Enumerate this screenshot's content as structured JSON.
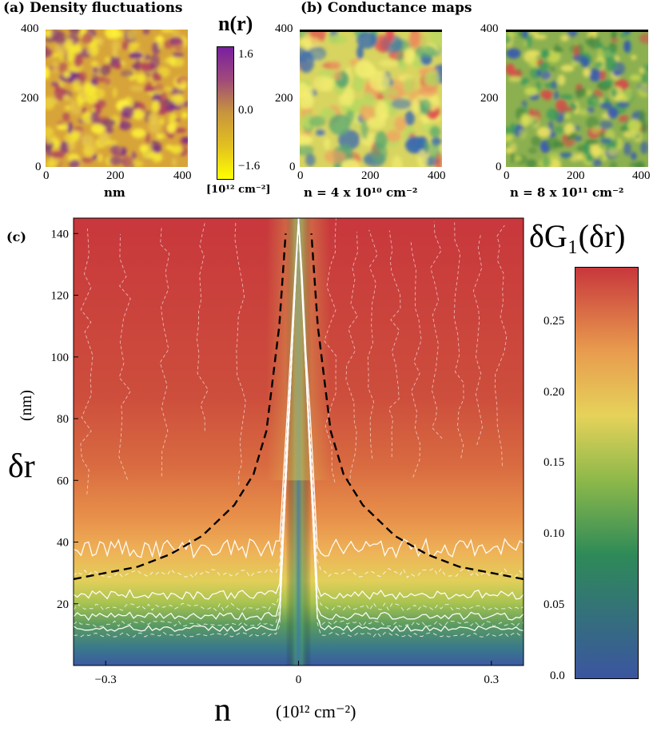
{
  "panel_a": {
    "title": "(a) Density fluctuations",
    "x_ticks": [
      "0",
      "200",
      "400"
    ],
    "y_ticks": [
      "400",
      "200",
      "0"
    ],
    "xlabel": "nm",
    "colorbar_title": "n(r)",
    "colorbar_ticks": [
      "1.6",
      "0.0",
      "−1.6"
    ],
    "colorbar_unit": "[10¹² cm⁻²]",
    "colors": [
      "#ffff00",
      "#c8963c",
      "#7a1fa0"
    ]
  },
  "panel_b": {
    "title": "(b) Conductance maps",
    "maps": [
      {
        "x_ticks": [
          "0",
          "200",
          "400"
        ],
        "y_ticks": [
          "400",
          "200",
          "0"
        ],
        "caption": "n = 4 x 10¹⁰ cm⁻²"
      },
      {
        "x_ticks": [
          "0",
          "200",
          "400"
        ],
        "y_ticks": [
          "400",
          "200",
          "0"
        ],
        "caption": "n = 8 x 10¹¹ cm⁻²"
      }
    ]
  },
  "panel_c": {
    "label": "(c)",
    "ylabel_symbol": "δr",
    "ylabel_unit": "(nm)",
    "xlabel_symbol": "n",
    "xlabel_unit": "(10¹² cm⁻²)",
    "colorbar_title": "δG₁(δr)",
    "colorbar_ticks": [
      "0.25",
      "0.20",
      "0.15",
      "0.10",
      "0.05",
      "0.0"
    ],
    "colorscale": [
      "#3b55a0",
      "#2e8a58",
      "#8cb84a",
      "#e6d25a",
      "#e89a4e",
      "#c8373c"
    ]
  },
  "chart_data": {
    "type": "heatmap",
    "x": [
      -0.35,
      0.35
    ],
    "y": [
      0,
      145
    ],
    "xlim": [
      -0.35,
      0.35
    ],
    "ylim": [
      0,
      145
    ],
    "x_ticks": [
      -0.3,
      0,
      0.3
    ],
    "x_tick_labels": [
      "−0.3",
      "0",
      "0.3"
    ],
    "y_ticks": [
      20,
      40,
      60,
      80,
      100,
      120,
      140
    ],
    "y_tick_labels": [
      "20",
      "40",
      "60",
      "80",
      "100",
      "120",
      "140"
    ],
    "zlim": [
      0.0,
      0.29
    ],
    "z_ticks": [
      0.0,
      0.05,
      0.1,
      0.15,
      0.2,
      0.25
    ],
    "contour_levels_solid": [
      38,
      23,
      16,
      12
    ],
    "dashed_curve": {
      "x": [
        -0.35,
        -0.3,
        -0.25,
        -0.2,
        -0.15,
        -0.1,
        -0.07,
        -0.05,
        -0.03,
        -0.02
      ],
      "y": [
        28,
        30,
        32,
        36,
        42,
        52,
        62,
        76,
        110,
        140
      ]
    },
    "grid": false
  }
}
